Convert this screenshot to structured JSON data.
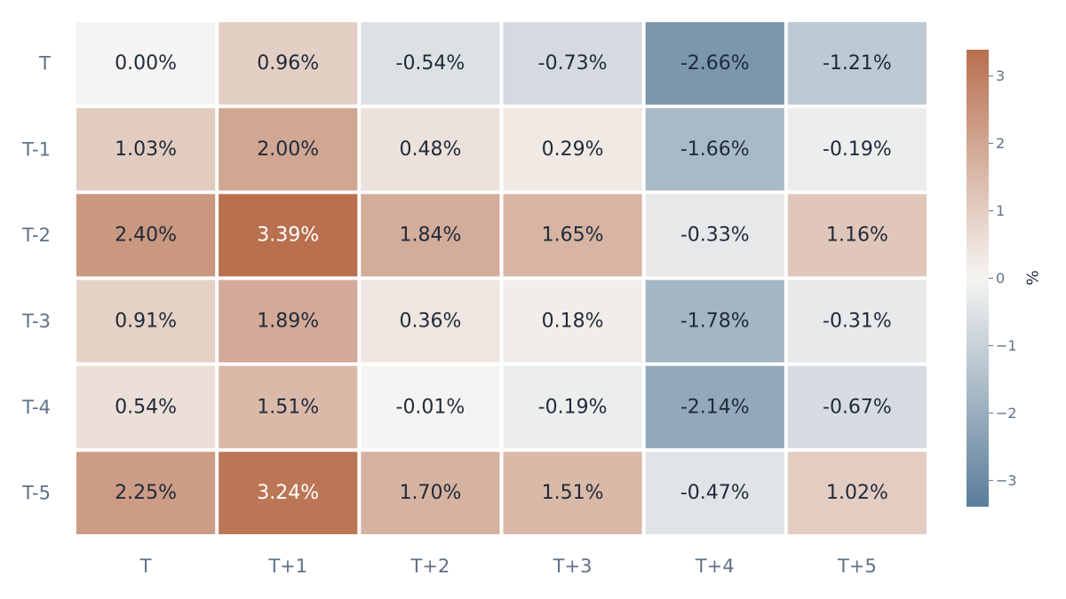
{
  "chart_data": {
    "type": "heatmap",
    "x_labels": [
      "T",
      "T+1",
      "T+2",
      "T+3",
      "T+4",
      "T+5"
    ],
    "y_labels": [
      "T",
      "T-1",
      "T-2",
      "T-3",
      "T-4",
      "T-5"
    ],
    "values": [
      [
        0.0,
        0.96,
        -0.54,
        -0.73,
        -2.66,
        -1.21
      ],
      [
        1.03,
        2.0,
        0.48,
        0.29,
        -1.66,
        -0.19
      ],
      [
        2.4,
        3.39,
        1.84,
        1.65,
        -0.33,
        1.16
      ],
      [
        0.91,
        1.89,
        0.36,
        0.18,
        -1.78,
        -0.31
      ],
      [
        0.54,
        1.51,
        -0.01,
        -0.19,
        -2.14,
        -0.67
      ],
      [
        2.25,
        3.24,
        1.7,
        1.51,
        -0.47,
        1.02
      ]
    ],
    "cell_labels": [
      [
        "0.00%",
        "0.96%",
        "-0.54%",
        "-0.73%",
        "-2.66%",
        "-1.21%"
      ],
      [
        "1.03%",
        "2.00%",
        "0.48%",
        "0.29%",
        "-1.66%",
        "-0.19%"
      ],
      [
        "2.40%",
        "3.39%",
        "1.84%",
        "1.65%",
        "-0.33%",
        "1.16%"
      ],
      [
        "0.91%",
        "1.89%",
        "0.36%",
        "0.18%",
        "-1.78%",
        "-0.31%"
      ],
      [
        "0.54%",
        "1.51%",
        "-0.01%",
        "-0.19%",
        "-2.14%",
        "-0.67%"
      ],
      [
        "2.25%",
        "3.24%",
        "1.70%",
        "1.51%",
        "-0.47%",
        "1.02%"
      ]
    ],
    "colorscale": {
      "min": -3.39,
      "max": 3.39,
      "negative_color": "#5a7d9a",
      "mid_color": "#f5f4f2",
      "positive_color": "#b8704f"
    },
    "colorbar": {
      "title": "%",
      "ticks": [
        3,
        2,
        1,
        0,
        -1,
        -2,
        -3
      ],
      "tick_labels": [
        "3",
        "2",
        "1",
        "0",
        "−1",
        "−2",
        "−3"
      ]
    },
    "text_colors": {
      "dark": "#1f2a3a",
      "light": "#ffffff"
    },
    "grid_line_color": "#ffffff"
  }
}
